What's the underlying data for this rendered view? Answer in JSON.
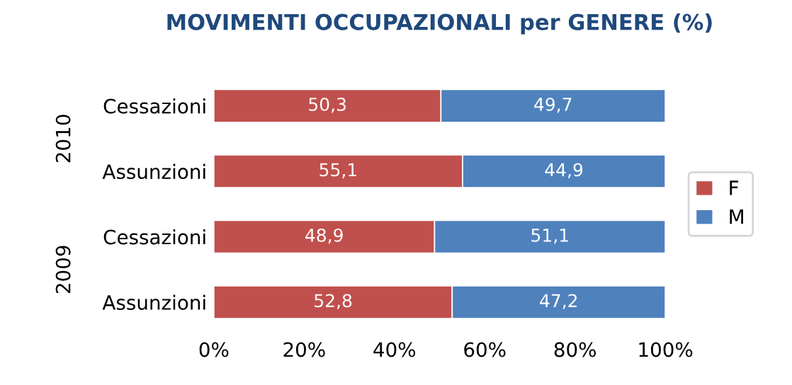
{
  "chart_data": {
    "type": "bar",
    "orientation": "horizontal",
    "stacked": true,
    "title": "MOVIMENTI OCCUPAZIONALI per GENERE (%)",
    "categories": [
      "Cessazioni",
      "Assunzioni",
      "Cessazioni",
      "Assunzioni"
    ],
    "series": [
      {
        "name": "F",
        "color": "#c0504d",
        "values": [
          50.3,
          55.1,
          48.9,
          52.8
        ],
        "value_labels": [
          "50,3",
          "55,1",
          "48,9",
          "52,8"
        ]
      },
      {
        "name": "M",
        "color": "#4f81bd",
        "values": [
          49.7,
          44.9,
          51.1,
          47.2
        ],
        "value_labels": [
          "49,7",
          "44,9",
          "51,1",
          "47,2"
        ]
      }
    ],
    "annotations": [
      "2010",
      "2009"
    ],
    "xlim": [
      0,
      100
    ],
    "xticks": [
      {
        "value": 0,
        "label": "0%"
      },
      {
        "value": 20,
        "label": "20%"
      },
      {
        "value": 40,
        "label": "40%"
      },
      {
        "value": 60,
        "label": "60%"
      },
      {
        "value": 80,
        "label": "80%"
      },
      {
        "value": 100,
        "label": "100%"
      }
    ],
    "grid": false,
    "legend": "right"
  }
}
